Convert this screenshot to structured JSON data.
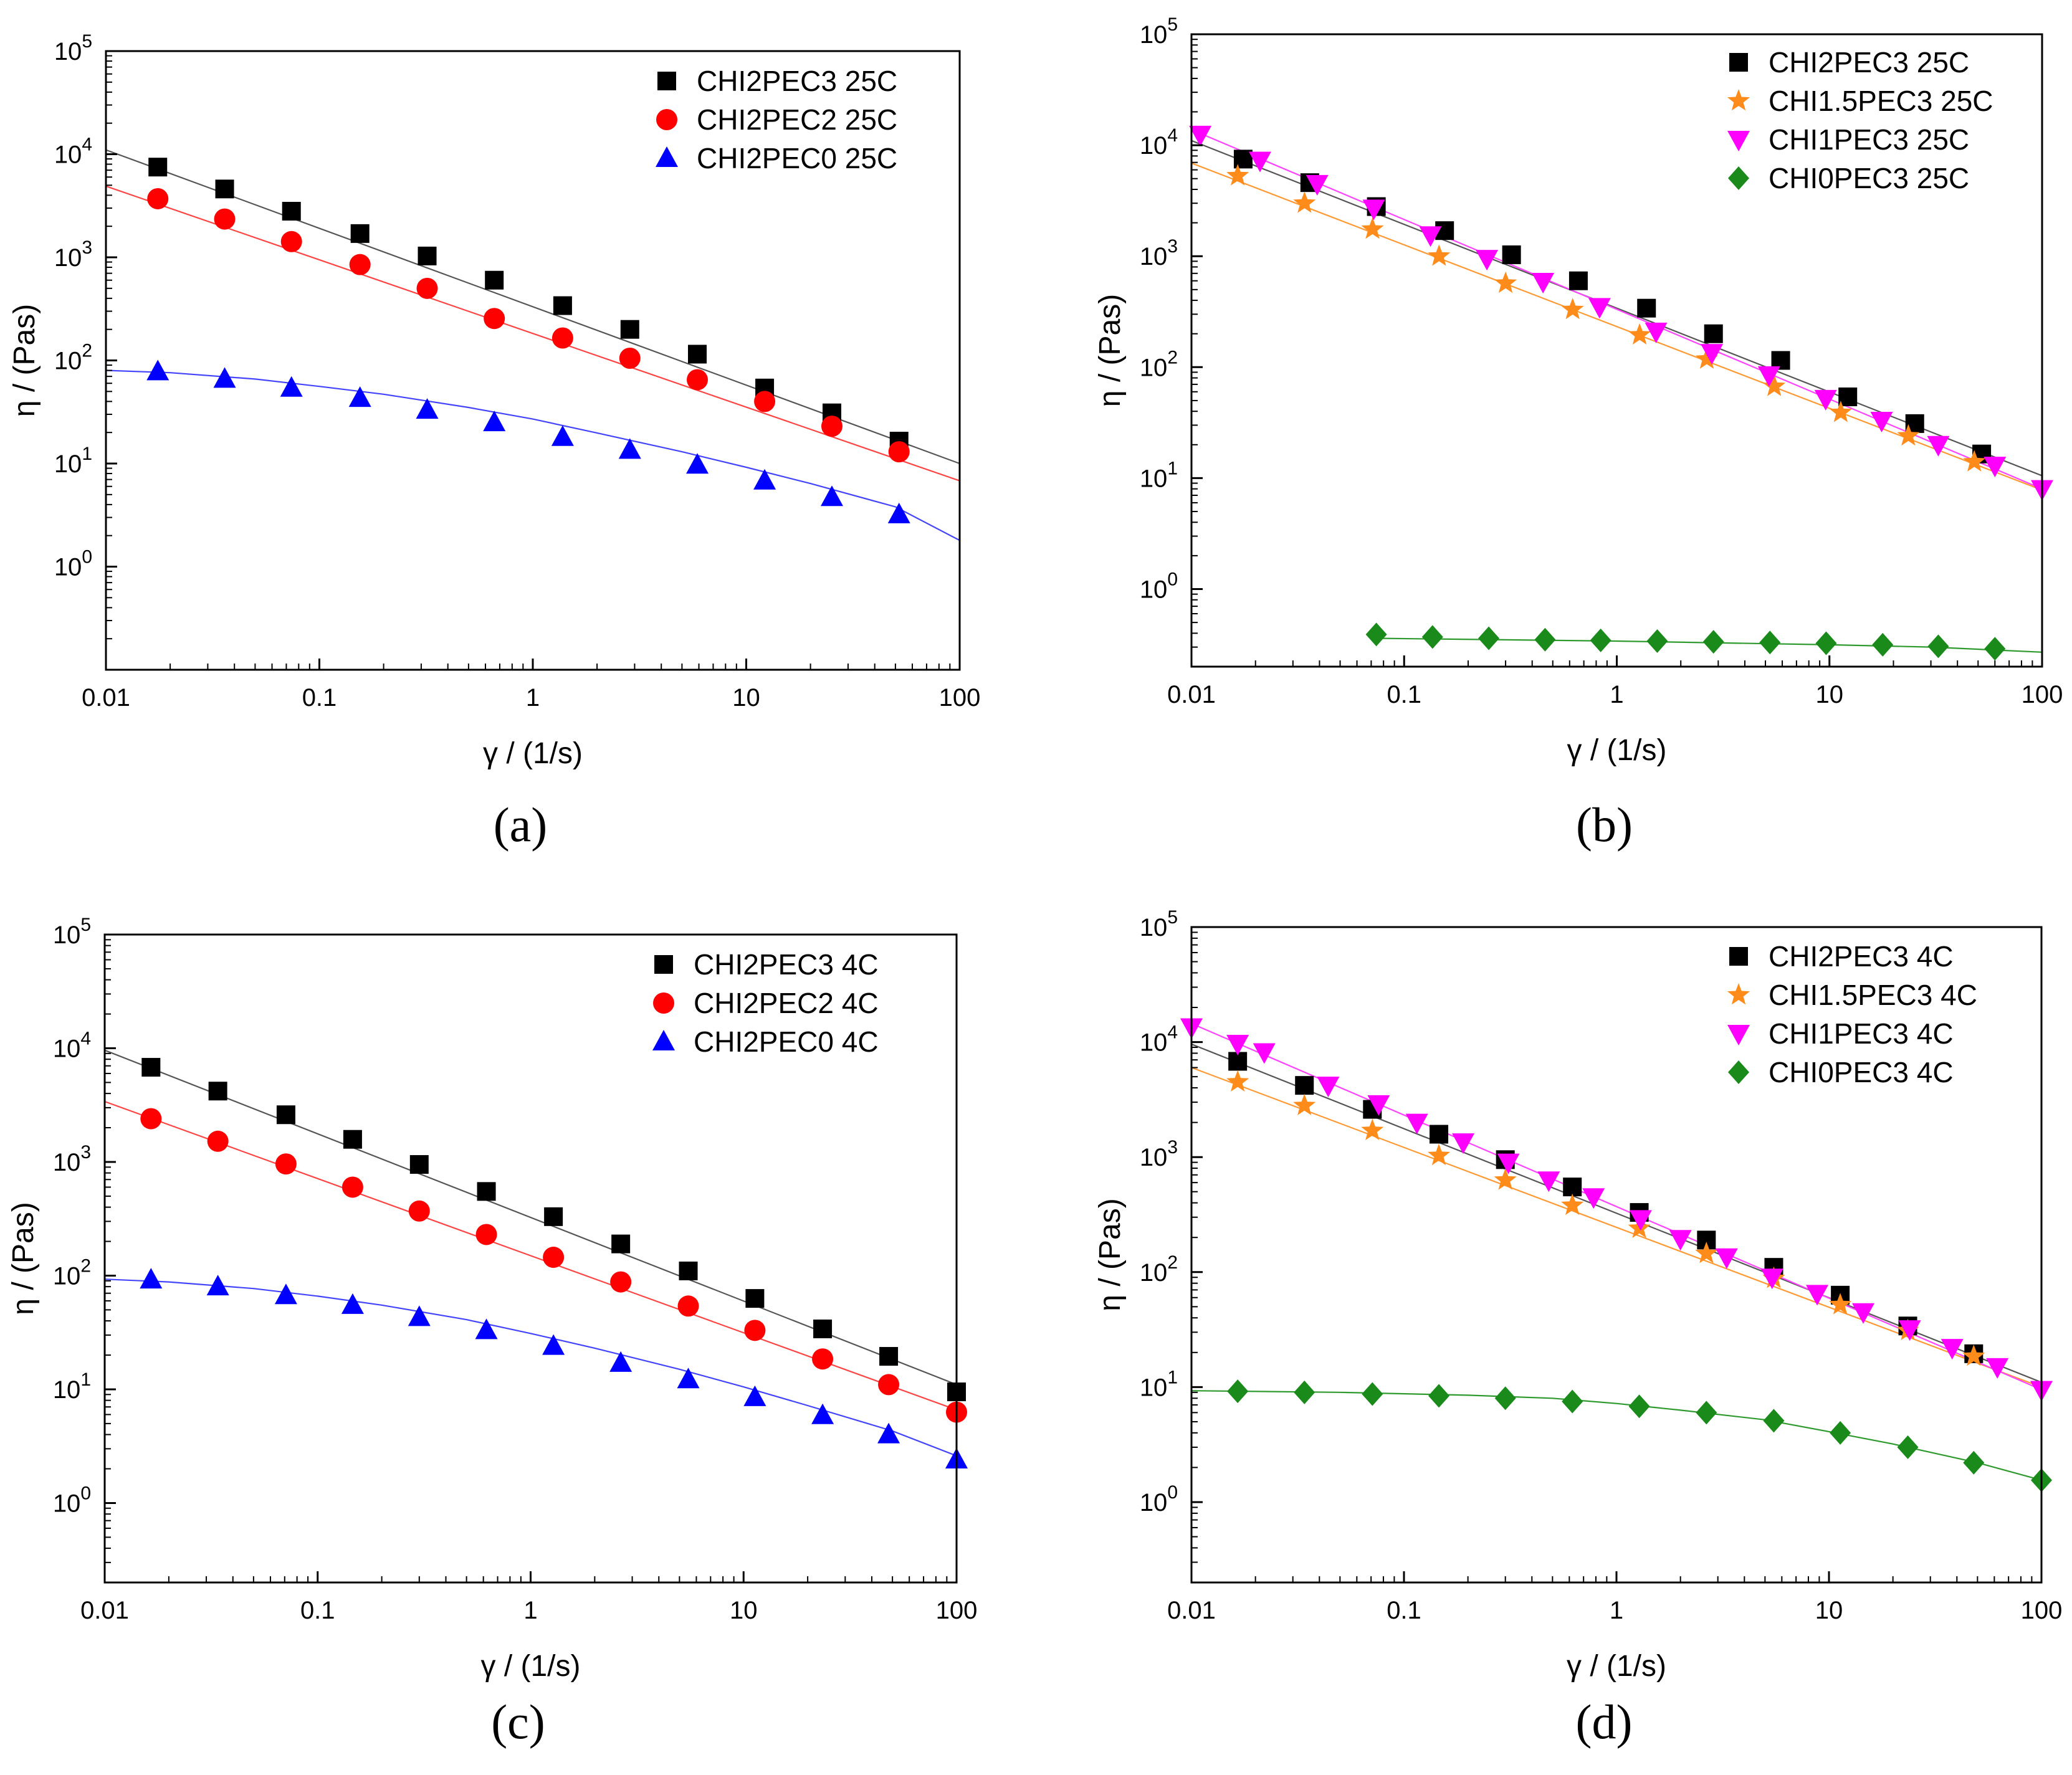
{
  "chart_data": [
    {
      "type": "scatter",
      "panel_label": "(a)",
      "xlabel": "γ / (1/s)",
      "ylabel": "η / (Pas)",
      "xscale": "log",
      "yscale": "log",
      "xlim": [
        0.01,
        100
      ],
      "ylim": [
        0.1,
        100000
      ],
      "xticks": [
        "0.01",
        "0.1",
        "1",
        "10",
        "100"
      ],
      "yticks": [
        {
          "base": "10",
          "exp": "0"
        },
        {
          "base": "10",
          "exp": "1"
        },
        {
          "base": "10",
          "exp": "2"
        },
        {
          "base": "10",
          "exp": "3"
        },
        {
          "base": "10",
          "exp": "4"
        },
        {
          "base": "10",
          "exp": "5"
        }
      ],
      "legend_position": "top-right",
      "series": [
        {
          "name": "CHI2PEC3 25C",
          "marker": "square",
          "color": "#000000",
          "line_color": "#555555",
          "x": [
            0.0175,
            0.036,
            0.074,
            0.155,
            0.32,
            0.66,
            1.38,
            2.85,
            5.9,
            12.2,
            25.2,
            52
          ],
          "y": [
            7500,
            4600,
            2800,
            1700,
            1030,
            600,
            340,
            200,
            115,
            54,
            31,
            16.5
          ],
          "fit": {
            "x": [
              0.01,
              100
            ],
            "y": [
              11000,
              10
            ]
          }
        },
        {
          "name": "CHI2PEC2 25C",
          "marker": "circle",
          "color": "#ff0000",
          "line_color": "#ff4444",
          "x": [
            0.0175,
            0.036,
            0.074,
            0.155,
            0.32,
            0.66,
            1.38,
            2.85,
            5.9,
            12.2,
            25.2,
            52
          ],
          "y": [
            3700,
            2350,
            1420,
            850,
            500,
            255,
            165,
            105,
            65,
            40,
            23,
            13
          ],
          "fit": {
            "x": [
              0.01,
              100
            ],
            "y": [
              4900,
              6.8
            ]
          }
        },
        {
          "name": "CHI2PEC0 25C",
          "marker": "triangle-up",
          "color": "#0000ff",
          "line_color": "#4444ff",
          "x": [
            0.0175,
            0.036,
            0.074,
            0.155,
            0.32,
            0.66,
            1.38,
            2.85,
            5.9,
            12.2,
            25.2,
            52
          ],
          "y": [
            78,
            66,
            54,
            43,
            33,
            25,
            18,
            13.5,
            9.7,
            6.8,
            4.7,
            3.2
          ],
          "fit": {
            "x": [
              0.01,
              0.02,
              0.05,
              0.1,
              0.2,
              0.5,
              1,
              2,
              5,
              10,
              20,
              50,
              100
            ],
            "y": [
              80,
              76,
              66,
              56,
              47,
              35,
              27,
              19.8,
              13,
              9.2,
              6.4,
              3.8,
              1.8
            ]
          }
        }
      ]
    },
    {
      "type": "scatter",
      "panel_label": "(b)",
      "xlabel": "γ / (1/s)",
      "ylabel": "η / (Pas)",
      "xscale": "log",
      "yscale": "log",
      "xlim": [
        0.01,
        100
      ],
      "ylim": [
        0.2,
        100000
      ],
      "xticks": [
        "0.01",
        "0.1",
        "1",
        "10",
        "100"
      ],
      "yticks": [
        {
          "base": "10",
          "exp": "0"
        },
        {
          "base": "10",
          "exp": "1"
        },
        {
          "base": "10",
          "exp": "2"
        },
        {
          "base": "10",
          "exp": "3"
        },
        {
          "base": "10",
          "exp": "4"
        },
        {
          "base": "10",
          "exp": "5"
        }
      ],
      "legend_position": "top-right",
      "series": [
        {
          "name": "CHI2PEC3 25C",
          "marker": "square",
          "color": "#000000",
          "line_color": "#555555",
          "x": [
            0.0175,
            0.036,
            0.074,
            0.155,
            0.32,
            0.66,
            1.38,
            2.85,
            5.9,
            12.2,
            25.2,
            52
          ],
          "y": [
            7500,
            4600,
            2800,
            1700,
            1030,
            600,
            340,
            200,
            115,
            54,
            31,
            16.5
          ],
          "fit": {
            "x": [
              0.01,
              100
            ],
            "y": [
              11000,
              10.5
            ]
          }
        },
        {
          "name": "CHI1.5PEC3 25C",
          "marker": "star",
          "color": "#ff8c1a",
          "line_color": "#ff9933",
          "x": [
            0.0165,
            0.034,
            0.071,
            0.146,
            0.3,
            0.62,
            1.28,
            2.65,
            5.5,
            11.3,
            23.5,
            48
          ],
          "y": [
            5300,
            3000,
            1750,
            1000,
            570,
            330,
            195,
            118,
            67,
            39,
            24,
            14
          ],
          "fit": {
            "x": [
              0.01,
              100
            ],
            "y": [
              6900,
              7.8
            ]
          }
        },
        {
          "name": "CHI1PEC3 25C",
          "marker": "triangle-down",
          "color": "#ff00ff",
          "line_color": "#ff44ff",
          "x": [
            0.011,
            0.021,
            0.039,
            0.072,
            0.133,
            0.245,
            0.45,
            0.83,
            1.53,
            2.8,
            5.2,
            9.6,
            17.6,
            32.5,
            60,
            100
          ],
          "y": [
            12500,
            7300,
            4500,
            2700,
            1550,
            950,
            590,
            350,
            210,
            135,
            85,
            52,
            33,
            20,
            13,
            8
          ],
          "fit": {
            "x": [
              0.01,
              100
            ],
            "y": [
              13800,
              8
            ]
          }
        },
        {
          "name": "CHI0PEC3 25C",
          "marker": "diamond",
          "color": "#1a8a1a",
          "line_color": "#2e9a2e",
          "x": [
            0.074,
            0.136,
            0.25,
            0.46,
            0.84,
            1.55,
            2.85,
            5.25,
            9.65,
            17.8,
            32.5,
            60
          ],
          "y": [
            0.39,
            0.37,
            0.36,
            0.35,
            0.345,
            0.34,
            0.335,
            0.33,
            0.325,
            0.315,
            0.305,
            0.29
          ],
          "fit": {
            "x": [
              0.074,
              1,
              10,
              30,
              100
            ],
            "y": [
              0.36,
              0.34,
              0.315,
              0.3,
              0.27
            ]
          }
        }
      ]
    },
    {
      "type": "scatter",
      "panel_label": "(c)",
      "xlabel": "γ / (1/s)",
      "ylabel": "η / (Pas)",
      "xscale": "log",
      "yscale": "log",
      "xlim": [
        0.01,
        100
      ],
      "ylim": [
        0.2,
        100000
      ],
      "xticks": [
        "0.01",
        "0.1",
        "1",
        "10",
        "100"
      ],
      "yticks": [
        {
          "base": "10",
          "exp": "0"
        },
        {
          "base": "10",
          "exp": "1"
        },
        {
          "base": "10",
          "exp": "2"
        },
        {
          "base": "10",
          "exp": "3"
        },
        {
          "base": "10",
          "exp": "4"
        },
        {
          "base": "10",
          "exp": "5"
        }
      ],
      "legend_position": "top-right",
      "series": [
        {
          "name": "CHI2PEC3 4C",
          "marker": "square",
          "color": "#000000",
          "line_color": "#555555",
          "x": [
            0.0165,
            0.034,
            0.071,
            0.146,
            0.3,
            0.62,
            1.28,
            2.65,
            5.5,
            11.3,
            23.5,
            48,
            100
          ],
          "y": [
            6800,
            4200,
            2600,
            1580,
            950,
            550,
            330,
            190,
            110,
            63,
            34,
            19.5,
            9.5
          ],
          "fit": {
            "x": [
              0.01,
              100
            ],
            "y": [
              9600,
              11
            ]
          }
        },
        {
          "name": "CHI2PEC2 4C",
          "marker": "circle",
          "color": "#ff0000",
          "line_color": "#ff4444",
          "x": [
            0.0165,
            0.034,
            0.071,
            0.146,
            0.3,
            0.62,
            1.28,
            2.65,
            5.5,
            11.3,
            23.5,
            48,
            100
          ],
          "y": [
            2400,
            1520,
            960,
            600,
            370,
            230,
            145,
            88,
            54,
            33,
            18.5,
            11,
            6.3
          ],
          "fit": {
            "x": [
              0.01,
              100
            ],
            "y": [
              3400,
              6.6
            ]
          }
        },
        {
          "name": "CHI2PEC0 4C",
          "marker": "triangle-up",
          "color": "#0000ff",
          "line_color": "#4444ff",
          "x": [
            0.0165,
            0.034,
            0.071,
            0.146,
            0.3,
            0.62,
            1.28,
            2.65,
            5.5,
            11.3,
            23.5,
            48,
            100
          ],
          "y": [
            92,
            80,
            67,
            55,
            43,
            33,
            24,
            17,
            12.2,
            8.5,
            5.9,
            4.0,
            2.4
          ],
          "fit": {
            "x": [
              0.01,
              0.02,
              0.05,
              0.1,
              0.2,
              0.5,
              1,
              2,
              5,
              10,
              20,
              50,
              100
            ],
            "y": [
              93,
              88,
              77,
              66,
              55,
              41,
              31,
              23,
              15,
              10.5,
              7.2,
              4.3,
              2.6
            ]
          }
        }
      ]
    },
    {
      "type": "scatter",
      "panel_label": "(d)",
      "xlabel": "γ / (1/s)",
      "ylabel": "η / (Pas)",
      "xscale": "log",
      "yscale": "log",
      "xlim": [
        0.01,
        100
      ],
      "ylim": [
        0.2,
        100000
      ],
      "xticks": [
        "0.01",
        "0.1",
        "1",
        "10",
        "100"
      ],
      "yticks": [
        {
          "base": "10",
          "exp": "0"
        },
        {
          "base": "10",
          "exp": "1"
        },
        {
          "base": "10",
          "exp": "2"
        },
        {
          "base": "10",
          "exp": "3"
        },
        {
          "base": "10",
          "exp": "4"
        },
        {
          "base": "10",
          "exp": "5"
        }
      ],
      "legend_position": "top-right",
      "series": [
        {
          "name": "CHI2PEC3 4C",
          "marker": "square",
          "color": "#000000",
          "line_color": "#555555",
          "x": [
            0.0165,
            0.034,
            0.071,
            0.146,
            0.3,
            0.62,
            1.28,
            2.65,
            5.5,
            11.3,
            23.5,
            48
          ],
          "y": [
            6800,
            4200,
            2600,
            1580,
            950,
            550,
            330,
            190,
            110,
            63,
            34,
            19.5
          ],
          "fit": {
            "x": [
              0.01,
              100
            ],
            "y": [
              9600,
              11
            ]
          }
        },
        {
          "name": "CHI1.5PEC3 4C",
          "marker": "star",
          "color": "#ff8c1a",
          "line_color": "#ff9933",
          "x": [
            0.0165,
            0.034,
            0.071,
            0.146,
            0.3,
            0.62,
            1.28,
            2.65,
            5.5,
            11.3,
            23.5,
            48
          ],
          "y": [
            4500,
            2800,
            1700,
            1030,
            630,
            380,
            240,
            145,
            88,
            52,
            31,
            18.5
          ],
          "fit": {
            "x": [
              0.01,
              100
            ],
            "y": [
              6000,
              10
            ]
          }
        },
        {
          "name": "CHI1PEC3 4C",
          "marker": "triangle-down",
          "color": "#ff00ff",
          "line_color": "#ff44ff",
          "x": [
            0.01,
            0.0165,
            0.022,
            0.044,
            0.076,
            0.115,
            0.19,
            0.31,
            0.48,
            0.78,
            1.3,
            2.0,
            3.3,
            5.4,
            8.8,
            14.5,
            24,
            38,
            62,
            100
          ],
          "y": [
            13500,
            9700,
            8200,
            4200,
            2900,
            2000,
            1350,
            900,
            630,
            450,
            290,
            195,
            135,
            90,
            65,
            45,
            32,
            22,
            15,
            9.5
          ],
          "fit": {
            "x": [
              0.01,
              100
            ],
            "y": [
              14500,
              9.5
            ]
          }
        },
        {
          "name": "CHI0PEC3 4C",
          "marker": "diamond",
          "color": "#1a8a1a",
          "line_color": "#2e9a2e",
          "x": [
            0.0165,
            0.034,
            0.071,
            0.146,
            0.3,
            0.62,
            1.28,
            2.65,
            5.5,
            11.3,
            23.5,
            48,
            100
          ],
          "y": [
            9.2,
            9.0,
            8.7,
            8.4,
            8.0,
            7.5,
            6.8,
            6.0,
            5.1,
            4.0,
            3.0,
            2.2,
            1.55
          ],
          "fit": {
            "x": [
              0.01,
              0.05,
              0.2,
              0.5,
              1,
              2,
              5,
              10,
              20,
              50,
              100
            ],
            "y": [
              9.3,
              9.0,
              8.5,
              8.0,
              7.2,
              6.3,
              5.2,
              4.1,
              3.2,
              2.2,
              1.55
            ]
          }
        }
      ]
    }
  ]
}
